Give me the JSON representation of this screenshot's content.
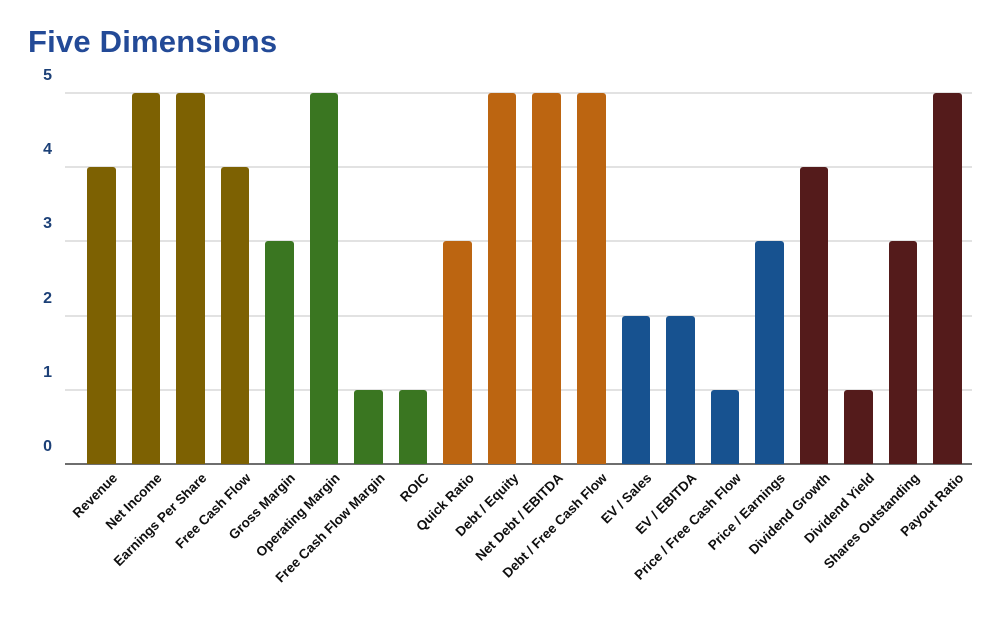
{
  "header": {
    "title": "Five Dimensions",
    "title_color": "#234A97"
  },
  "chart_data": {
    "type": "bar",
    "title": "Five Dimensions",
    "xlabel": "",
    "ylabel": "",
    "ylim": [
      0,
      5
    ],
    "yticks": [
      0,
      1,
      2,
      3,
      4,
      5
    ],
    "grid": true,
    "legend_position": "none",
    "categories": [
      "Revenue",
      "Net Income",
      "Earnings Per Share",
      "Free Cash Flow",
      "Gross Margin",
      "Operating Margin",
      "Free Cash Flow Margin",
      "ROIC",
      "Quick Ratio",
      "Debt / Equity",
      "Net Debt / EBITDA",
      "Debt / Free Cash Flow",
      "EV / Sales",
      "EV / EBITDA",
      "Price / Free Cash Flow",
      "Price / Earnings",
      "Dividend Growth",
      "Dividend Yield",
      "Shares Outstanding",
      "Payout Ratio"
    ],
    "values": [
      4,
      5,
      5,
      4,
      3,
      5,
      1,
      1,
      3,
      5,
      5,
      5,
      2,
      2,
      1,
      3,
      4,
      1,
      3,
      5
    ],
    "bar_colors": [
      "#7D6102",
      "#7D6102",
      "#7D6102",
      "#7D6102",
      "#3A7621",
      "#3A7621",
      "#3A7621",
      "#3A7621",
      "#BC6511",
      "#BC6511",
      "#BC6511",
      "#BC6511",
      "#175290",
      "#175290",
      "#175290",
      "#175290",
      "#541B1B",
      "#541B1B",
      "#541B1B",
      "#541B1B"
    ],
    "palette": {
      "olive": "#7D6102",
      "green": "#3A7621",
      "orange": "#BC6511",
      "blue": "#175290",
      "maroon": "#541B1B"
    },
    "axis_style": {
      "ytick_label_color": "#1C4077",
      "grid_color": "#E2E2E2",
      "baseline_color": "#6E6E6E",
      "category_label_color": "#0F0F0F"
    }
  }
}
